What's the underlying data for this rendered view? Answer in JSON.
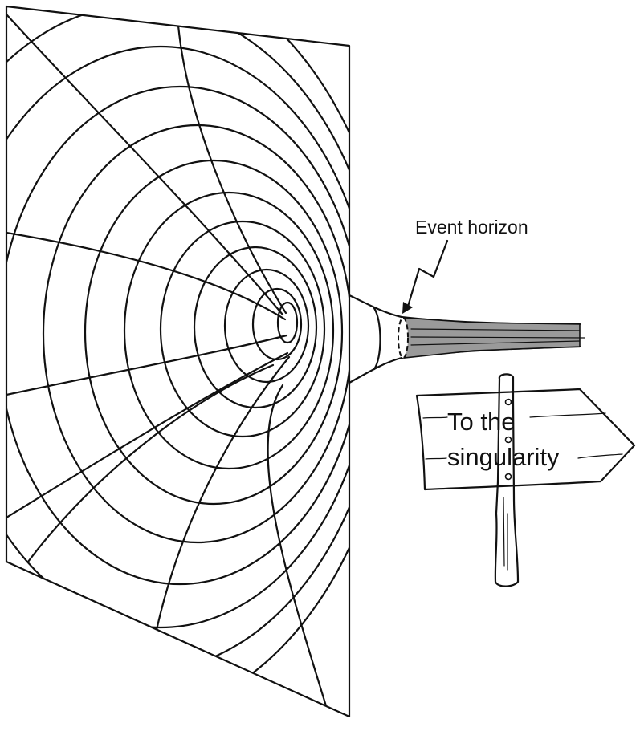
{
  "diagram": {
    "event_horizon_label": "Event horizon",
    "sign": {
      "line1": "To the",
      "line2": "singularity"
    },
    "colors": {
      "ink": "#111111",
      "throat_fill": "#9a9a9a",
      "background": "#ffffff"
    }
  }
}
